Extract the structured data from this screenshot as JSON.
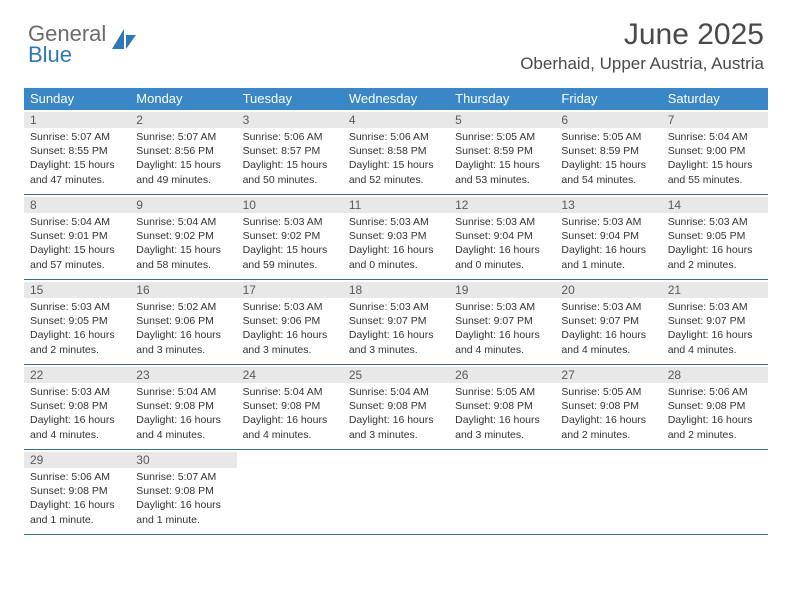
{
  "brand": {
    "part1": "General",
    "part2": "Blue"
  },
  "title": "June 2025",
  "location": "Oberhaid, Upper Austria, Austria",
  "colors": {
    "header_bg": "#3a87c8",
    "header_text": "#ffffff",
    "row_border": "#2f6fa6",
    "daynum_bg": "#e8e8e8",
    "body_text": "#333333",
    "brand_gray": "#6b6b6b",
    "brand_blue": "#2f78b7"
  },
  "weekdays": [
    "Sunday",
    "Monday",
    "Tuesday",
    "Wednesday",
    "Thursday",
    "Friday",
    "Saturday"
  ],
  "days": [
    {
      "n": 1,
      "sr": "5:07 AM",
      "ss": "8:55 PM",
      "dl": "15 hours and 47 minutes."
    },
    {
      "n": 2,
      "sr": "5:07 AM",
      "ss": "8:56 PM",
      "dl": "15 hours and 49 minutes."
    },
    {
      "n": 3,
      "sr": "5:06 AM",
      "ss": "8:57 PM",
      "dl": "15 hours and 50 minutes."
    },
    {
      "n": 4,
      "sr": "5:06 AM",
      "ss": "8:58 PM",
      "dl": "15 hours and 52 minutes."
    },
    {
      "n": 5,
      "sr": "5:05 AM",
      "ss": "8:59 PM",
      "dl": "15 hours and 53 minutes."
    },
    {
      "n": 6,
      "sr": "5:05 AM",
      "ss": "8:59 PM",
      "dl": "15 hours and 54 minutes."
    },
    {
      "n": 7,
      "sr": "5:04 AM",
      "ss": "9:00 PM",
      "dl": "15 hours and 55 minutes."
    },
    {
      "n": 8,
      "sr": "5:04 AM",
      "ss": "9:01 PM",
      "dl": "15 hours and 57 minutes."
    },
    {
      "n": 9,
      "sr": "5:04 AM",
      "ss": "9:02 PM",
      "dl": "15 hours and 58 minutes."
    },
    {
      "n": 10,
      "sr": "5:03 AM",
      "ss": "9:02 PM",
      "dl": "15 hours and 59 minutes."
    },
    {
      "n": 11,
      "sr": "5:03 AM",
      "ss": "9:03 PM",
      "dl": "16 hours and 0 minutes."
    },
    {
      "n": 12,
      "sr": "5:03 AM",
      "ss": "9:04 PM",
      "dl": "16 hours and 0 minutes."
    },
    {
      "n": 13,
      "sr": "5:03 AM",
      "ss": "9:04 PM",
      "dl": "16 hours and 1 minute."
    },
    {
      "n": 14,
      "sr": "5:03 AM",
      "ss": "9:05 PM",
      "dl": "16 hours and 2 minutes."
    },
    {
      "n": 15,
      "sr": "5:03 AM",
      "ss": "9:05 PM",
      "dl": "16 hours and 2 minutes."
    },
    {
      "n": 16,
      "sr": "5:02 AM",
      "ss": "9:06 PM",
      "dl": "16 hours and 3 minutes."
    },
    {
      "n": 17,
      "sr": "5:03 AM",
      "ss": "9:06 PM",
      "dl": "16 hours and 3 minutes."
    },
    {
      "n": 18,
      "sr": "5:03 AM",
      "ss": "9:07 PM",
      "dl": "16 hours and 3 minutes."
    },
    {
      "n": 19,
      "sr": "5:03 AM",
      "ss": "9:07 PM",
      "dl": "16 hours and 4 minutes."
    },
    {
      "n": 20,
      "sr": "5:03 AM",
      "ss": "9:07 PM",
      "dl": "16 hours and 4 minutes."
    },
    {
      "n": 21,
      "sr": "5:03 AM",
      "ss": "9:07 PM",
      "dl": "16 hours and 4 minutes."
    },
    {
      "n": 22,
      "sr": "5:03 AM",
      "ss": "9:08 PM",
      "dl": "16 hours and 4 minutes."
    },
    {
      "n": 23,
      "sr": "5:04 AM",
      "ss": "9:08 PM",
      "dl": "16 hours and 4 minutes."
    },
    {
      "n": 24,
      "sr": "5:04 AM",
      "ss": "9:08 PM",
      "dl": "16 hours and 4 minutes."
    },
    {
      "n": 25,
      "sr": "5:04 AM",
      "ss": "9:08 PM",
      "dl": "16 hours and 3 minutes."
    },
    {
      "n": 26,
      "sr": "5:05 AM",
      "ss": "9:08 PM",
      "dl": "16 hours and 3 minutes."
    },
    {
      "n": 27,
      "sr": "5:05 AM",
      "ss": "9:08 PM",
      "dl": "16 hours and 2 minutes."
    },
    {
      "n": 28,
      "sr": "5:06 AM",
      "ss": "9:08 PM",
      "dl": "16 hours and 2 minutes."
    },
    {
      "n": 29,
      "sr": "5:06 AM",
      "ss": "9:08 PM",
      "dl": "16 hours and 1 minute."
    },
    {
      "n": 30,
      "sr": "5:07 AM",
      "ss": "9:08 PM",
      "dl": "16 hours and 1 minute."
    }
  ],
  "labels": {
    "sunrise": "Sunrise:",
    "sunset": "Sunset:",
    "daylight": "Daylight:"
  },
  "layout": {
    "start_weekday": 0,
    "total_cells": 35,
    "columns": 7
  }
}
